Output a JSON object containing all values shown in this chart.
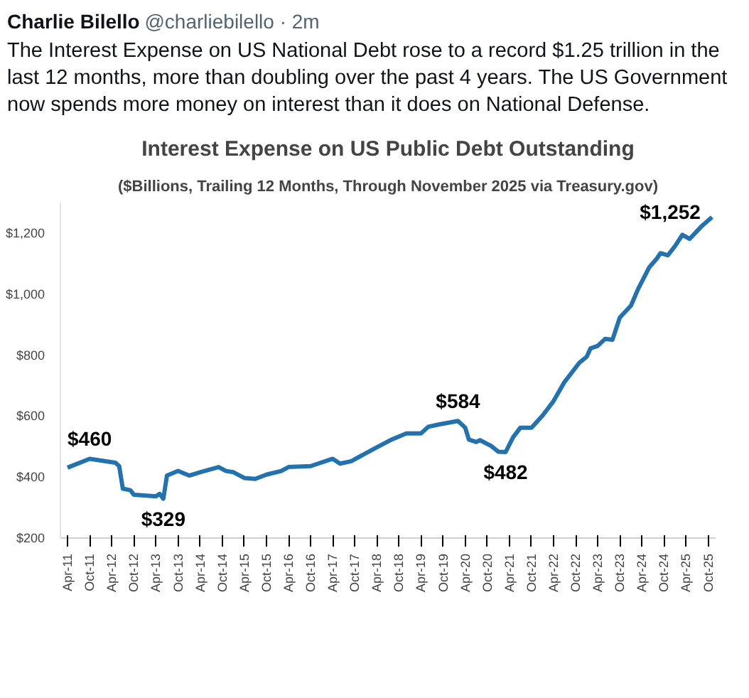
{
  "chart_data": {
    "type": "line",
    "title": "Interest Expense on US Public Debt Outstanding",
    "subtitle": "($Billions, Trailing 12 Months, Through November 2025 via Treasury.gov)",
    "x": [
      "2011-04",
      "2011-10",
      "2012-05",
      "2012-06",
      "2012-07",
      "2012-09",
      "2012-10",
      "2013-04",
      "2013-05",
      "2013-06",
      "2013-07",
      "2013-10",
      "2014-01",
      "2014-04",
      "2014-09",
      "2014-11",
      "2015-01",
      "2015-04",
      "2015-07",
      "2015-10",
      "2016-02",
      "2016-04",
      "2016-10",
      "2017-04",
      "2017-06",
      "2017-09",
      "2018-03",
      "2018-08",
      "2018-12",
      "2019-04",
      "2019-06",
      "2019-09",
      "2020-02",
      "2020-04",
      "2020-05",
      "2020-07",
      "2020-08",
      "2020-11",
      "2021-01",
      "2021-03",
      "2021-05",
      "2021-07",
      "2021-10",
      "2022-01",
      "2022-04",
      "2022-07",
      "2022-11",
      "2023-01",
      "2023-02",
      "2023-04",
      "2023-06",
      "2023-08",
      "2023-10",
      "2024-01",
      "2024-03",
      "2024-06",
      "2024-08",
      "2024-09",
      "2024-11",
      "2025-01",
      "2025-03",
      "2025-05",
      "2025-08",
      "2025-11"
    ],
    "series": [
      {
        "color": "#2372b0",
        "values": [
          431,
          460,
          447,
          436,
          362,
          357,
          342,
          337,
          345,
          329,
          405,
          420,
          405,
          416,
          433,
          420,
          416,
          397,
          394,
          408,
          420,
          433,
          436,
          460,
          444,
          452,
          491,
          523,
          543,
          543,
          565,
          573,
          584,
          562,
          523,
          515,
          521,
          502,
          483,
          482,
          530,
          562,
          562,
          602,
          649,
          712,
          775,
          795,
          822,
          830,
          853,
          850,
          923,
          962,
          1017,
          1088,
          1116,
          1134,
          1127,
          1158,
          1194,
          1181,
          1220,
          1252
        ]
      }
    ],
    "xlim": [
      "2011-02",
      "2025-12"
    ],
    "xticks": [
      {
        "value": "2011-04",
        "label": "Apr-11"
      },
      {
        "value": "2011-10",
        "label": "Oct-11"
      },
      {
        "value": "2012-04",
        "label": "Apr-12"
      },
      {
        "value": "2012-10",
        "label": "Oct-12"
      },
      {
        "value": "2013-04",
        "label": "Apr-13"
      },
      {
        "value": "2013-10",
        "label": "Oct-13"
      },
      {
        "value": "2014-04",
        "label": "Apr-14"
      },
      {
        "value": "2014-10",
        "label": "Oct-14"
      },
      {
        "value": "2015-04",
        "label": "Apr-15"
      },
      {
        "value": "2015-10",
        "label": "Oct-15"
      },
      {
        "value": "2016-04",
        "label": "Apr-16"
      },
      {
        "value": "2016-10",
        "label": "Oct-16"
      },
      {
        "value": "2017-04",
        "label": "Apr-17"
      },
      {
        "value": "2017-10",
        "label": "Oct-17"
      },
      {
        "value": "2018-04",
        "label": "Apr-18"
      },
      {
        "value": "2018-10",
        "label": "Oct-18"
      },
      {
        "value": "2019-04",
        "label": "Apr-19"
      },
      {
        "value": "2019-10",
        "label": "Oct-19"
      },
      {
        "value": "2020-04",
        "label": "Apr-20"
      },
      {
        "value": "2020-10",
        "label": "Oct-20"
      },
      {
        "value": "2021-04",
        "label": "Apr-21"
      },
      {
        "value": "2021-10",
        "label": "Oct-21"
      },
      {
        "value": "2022-04",
        "label": "Apr-22"
      },
      {
        "value": "2022-10",
        "label": "Oct-22"
      },
      {
        "value": "2023-04",
        "label": "Apr-23"
      },
      {
        "value": "2023-10",
        "label": "Oct-23"
      },
      {
        "value": "2024-04",
        "label": "Apr-24"
      },
      {
        "value": "2024-10",
        "label": "Oct-24"
      },
      {
        "value": "2025-04",
        "label": "Apr-25"
      },
      {
        "value": "2025-10",
        "label": "Oct-25"
      }
    ],
    "ylim": [
      200,
      1300
    ],
    "yticks": [
      {
        "value": 200,
        "label": "$200"
      },
      {
        "value": 400,
        "label": "$400"
      },
      {
        "value": 600,
        "label": "$600"
      },
      {
        "value": 800,
        "label": "$800"
      },
      {
        "value": 1000,
        "label": "$1,000"
      },
      {
        "value": 1200,
        "label": "$1,200"
      }
    ],
    "grid": false,
    "annotations": [
      "Charlie Bilello",
      "@charliebilello · 2m",
      "The Interest Expense on US National Debt rose to a record $1.25 trillion in the last 12 months, more than doubling over the past 4 years. The US Government now spends more money on interest than it does on National Defense.",
      {
        "text": "$460",
        "x": "2011-10",
        "y": 460
      },
      {
        "text": "$329",
        "x": "2013-06",
        "y": 329
      },
      {
        "text": "$584",
        "x": "2020-02",
        "y": 584
      },
      {
        "text": "$482",
        "x": "2021-03",
        "y": 482
      },
      {
        "text": "$1,252",
        "x": "2025-11",
        "y": 1252
      }
    ]
  }
}
